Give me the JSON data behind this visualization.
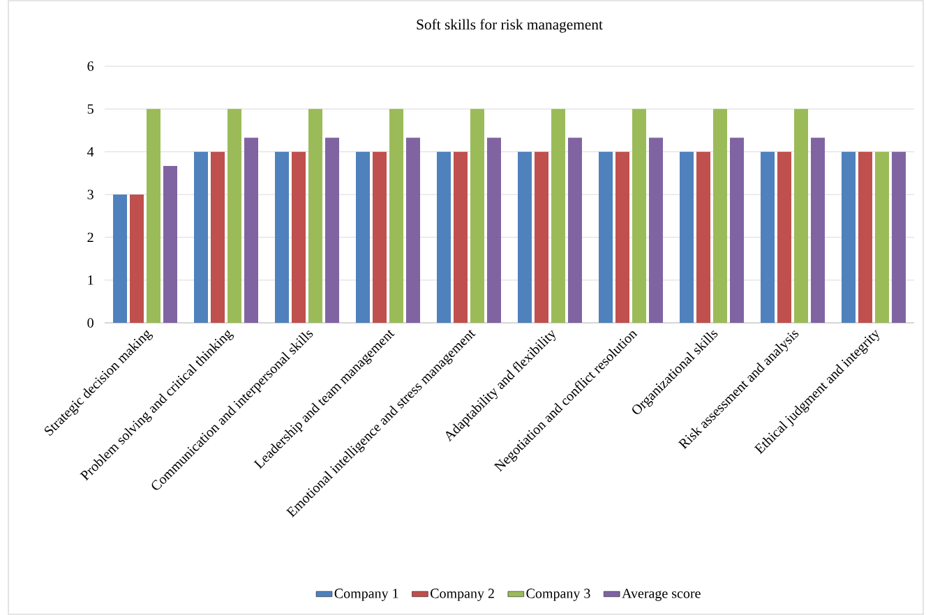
{
  "chart_data": {
    "type": "bar",
    "title": "Soft skills for risk management",
    "categories": [
      "Strategic decision making",
      "Problem solving and critical thinking",
      "Communication and interpersonal skills",
      "Leadership and team management",
      "Emotional intelligence and stress management",
      "Adaptability and flexibility",
      "Negotiation and conflict resolution",
      "Organizational skills",
      "Risk assessment and analysis",
      "Ethical judgment and integrity"
    ],
    "series": [
      {
        "name": "Company 1",
        "color": "#4f81bd",
        "values": [
          3,
          4,
          4,
          4,
          4,
          4,
          4,
          4,
          4,
          4
        ]
      },
      {
        "name": "Company 2",
        "color": "#c0504d",
        "values": [
          3,
          4,
          4,
          4,
          4,
          4,
          4,
          4,
          4,
          4
        ]
      },
      {
        "name": "Company 3",
        "color": "#9bbb59",
        "values": [
          5,
          5,
          5,
          5,
          5,
          5,
          5,
          5,
          5,
          4
        ]
      },
      {
        "name": "Average score",
        "color": "#8064a2",
        "values": [
          3.67,
          4.33,
          4.33,
          4.33,
          4.33,
          4.33,
          4.33,
          4.33,
          4.33,
          4
        ]
      }
    ],
    "ylim": [
      0,
      6
    ],
    "yticks": [
      0,
      1,
      2,
      3,
      4,
      5,
      6
    ],
    "grid": "y",
    "legend": "bottom"
  }
}
